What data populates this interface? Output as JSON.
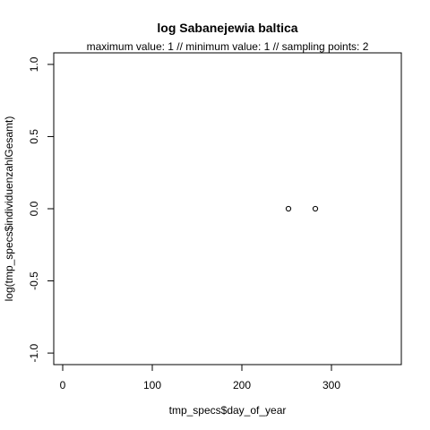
{
  "chart_data": {
    "type": "scatter",
    "title": "log Sabanejewia baltica",
    "subtitle": "maximum value: 1  //  minimum value: 1  // sampling points: 2",
    "xlabel": "tmp_specs$day_of_year",
    "ylabel": "log(tmp_specs$individuenzahlGesamt)",
    "xlim": [
      -10,
      378
    ],
    "ylim": [
      -1.08,
      1.08
    ],
    "xticks": [
      0,
      100,
      200,
      300
    ],
    "yticks": [
      -1.0,
      -0.5,
      0.0,
      0.5,
      1.0
    ],
    "xtick_labels": [
      "0",
      "100",
      "200",
      "300"
    ],
    "ytick_labels": [
      "-1.0",
      "-0.5",
      "0.0",
      "0.5",
      "1.0"
    ],
    "grid": false,
    "marker": "open-circle",
    "points": [
      {
        "x": 252,
        "y": 0
      },
      {
        "x": 282,
        "y": 0
      }
    ]
  }
}
